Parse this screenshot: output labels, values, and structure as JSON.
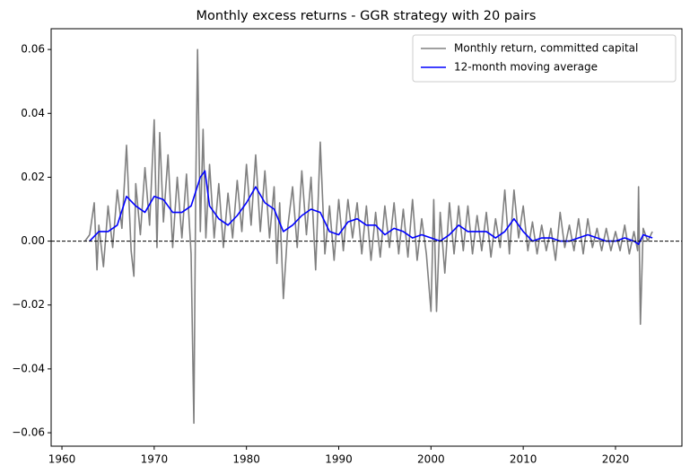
{
  "chart_data": {
    "type": "line",
    "title": "Monthly excess returns - GGR strategy with 20 pairs",
    "xlim": [
      1958.83,
      2027.2
    ],
    "xticks": [
      1960,
      1970,
      1980,
      1990,
      2000,
      2010,
      2020
    ],
    "ylim": [
      -0.0642,
      0.0665
    ],
    "yticks": [
      {
        "value": -0.06,
        "label": "−0.06"
      },
      {
        "value": -0.04,
        "label": "−0.04"
      },
      {
        "value": -0.02,
        "label": "−0.02"
      },
      {
        "value": 0,
        "label": "0.00"
      },
      0.02,
      0.04,
      0.06
    ],
    "hline": 0,
    "legend": "upper right",
    "series": [
      {
        "name": "Monthly return, committed capital",
        "color": "#808080",
        "x": [
          1962.5,
          1963,
          1963.5,
          1963.8,
          1964,
          1964.5,
          1965,
          1965.5,
          1966,
          1966.5,
          1967,
          1967.5,
          1967.8,
          1968,
          1968.5,
          1969,
          1969.5,
          1970,
          1970.3,
          1970.6,
          1971,
          1971.5,
          1972,
          1972.5,
          1973,
          1973.5,
          1974,
          1974.3,
          1974.5,
          1974.7,
          1975,
          1975.3,
          1975.6,
          1976,
          1976.5,
          1977,
          1977.5,
          1978,
          1978.5,
          1979,
          1979.5,
          1980,
          1980.5,
          1981,
          1981.5,
          1982,
          1982.5,
          1983,
          1983.3,
          1983.6,
          1984,
          1984.5,
          1985,
          1985.5,
          1986,
          1986.5,
          1987,
          1987.5,
          1988,
          1988.5,
          1989,
          1989.5,
          1990,
          1990.5,
          1991,
          1991.5,
          1992,
          1992.5,
          1993,
          1993.5,
          1994,
          1994.5,
          1995,
          1995.5,
          1996,
          1996.5,
          1997,
          1997.5,
          1998,
          1998.5,
          1999,
          1999.5,
          2000,
          2000.3,
          2000.6,
          2001,
          2001.5,
          2002,
          2002.5,
          2003,
          2003.5,
          2004,
          2004.5,
          2005,
          2005.5,
          2006,
          2006.5,
          2007,
          2007.5,
          2008,
          2008.5,
          2009,
          2009.5,
          2010,
          2010.5,
          2011,
          2011.5,
          2012,
          2012.5,
          2013,
          2013.5,
          2014,
          2014.5,
          2015,
          2015.5,
          2016,
          2016.5,
          2017,
          2017.5,
          2018,
          2018.5,
          2019,
          2019.5,
          2020,
          2020.5,
          2021,
          2021.5,
          2022,
          2022.4,
          2022.5,
          2022.7,
          2023,
          2023.5,
          2024
        ],
        "values": [
          0,
          0.002,
          0.012,
          -0.009,
          0.005,
          -0.008,
          0.011,
          -0.002,
          0.016,
          0.004,
          0.03,
          -0.003,
          -0.011,
          0.018,
          0.002,
          0.023,
          0.005,
          0.038,
          -0.002,
          0.034,
          0.006,
          0.027,
          -0.002,
          0.02,
          0.001,
          0.021,
          -0.004,
          -0.057,
          0.016,
          0.06,
          0.003,
          0.035,
          0.001,
          0.024,
          0.001,
          0.018,
          -0.002,
          0.015,
          0.001,
          0.019,
          0.003,
          0.024,
          0.005,
          0.027,
          0.003,
          0.022,
          0.001,
          0.017,
          -0.007,
          0.012,
          -0.018,
          0.005,
          0.017,
          -0.002,
          0.022,
          0.002,
          0.02,
          -0.009,
          0.031,
          -0.004,
          0.011,
          -0.006,
          0.013,
          -0.003,
          0.013,
          0.001,
          0.012,
          -0.004,
          0.011,
          -0.006,
          0.009,
          -0.005,
          0.011,
          -0.002,
          0.012,
          -0.004,
          0.01,
          -0.005,
          0.013,
          -0.006,
          0.007,
          -0.004,
          -0.022,
          0.013,
          -0.022,
          0.009,
          -0.01,
          0.012,
          -0.004,
          0.011,
          -0.003,
          0.011,
          -0.004,
          0.008,
          -0.003,
          0.009,
          -0.005,
          0.007,
          -0.002,
          0.016,
          -0.004,
          0.016,
          0.001,
          0.011,
          -0.003,
          0.006,
          -0.004,
          0.005,
          -0.003,
          0.004,
          -0.006,
          0.009,
          -0.002,
          0.005,
          -0.003,
          0.007,
          -0.004,
          0.007,
          -0.002,
          0.004,
          -0.003,
          0.004,
          -0.003,
          0.003,
          -0.003,
          0.005,
          -0.004,
          0.003,
          -0.003,
          0.017,
          -0.026,
          0.004,
          0.0,
          0.003
        ]
      },
      {
        "name": "12-month moving average",
        "color": "#0000ff",
        "x": [
          1963,
          1964,
          1965,
          1966,
          1967,
          1968,
          1969,
          1970,
          1971,
          1972,
          1973,
          1974,
          1975,
          1975.5,
          1976,
          1977,
          1978,
          1979,
          1980,
          1981,
          1982,
          1983,
          1984,
          1985,
          1986,
          1987,
          1988,
          1989,
          1990,
          1991,
          1992,
          1993,
          1994,
          1995,
          1996,
          1997,
          1998,
          1999,
          2000,
          2001,
          2002,
          2003,
          2004,
          2005,
          2006,
          2007,
          2008,
          2009,
          2010,
          2011,
          2012,
          2013,
          2014,
          2015,
          2016,
          2017,
          2018,
          2019,
          2020,
          2021,
          2022,
          2022.5,
          2023,
          2024
        ],
        "values": [
          0,
          0.003,
          0.003,
          0.005,
          0.014,
          0.011,
          0.009,
          0.014,
          0.013,
          0.009,
          0.009,
          0.011,
          0.02,
          0.022,
          0.011,
          0.007,
          0.005,
          0.008,
          0.012,
          0.017,
          0.012,
          0.01,
          0.003,
          0.005,
          0.008,
          0.01,
          0.009,
          0.003,
          0.002,
          0.006,
          0.007,
          0.005,
          0.005,
          0.002,
          0.004,
          0.003,
          0.001,
          0.002,
          0.001,
          0.0,
          0.002,
          0.005,
          0.003,
          0.003,
          0.003,
          0.001,
          0.003,
          0.007,
          0.003,
          0.0,
          0.001,
          0.001,
          0.0,
          0.0,
          0.001,
          0.002,
          0.001,
          0.0,
          0.0,
          0.001,
          0,
          -0.001,
          0.002,
          0.001
        ]
      }
    ]
  }
}
